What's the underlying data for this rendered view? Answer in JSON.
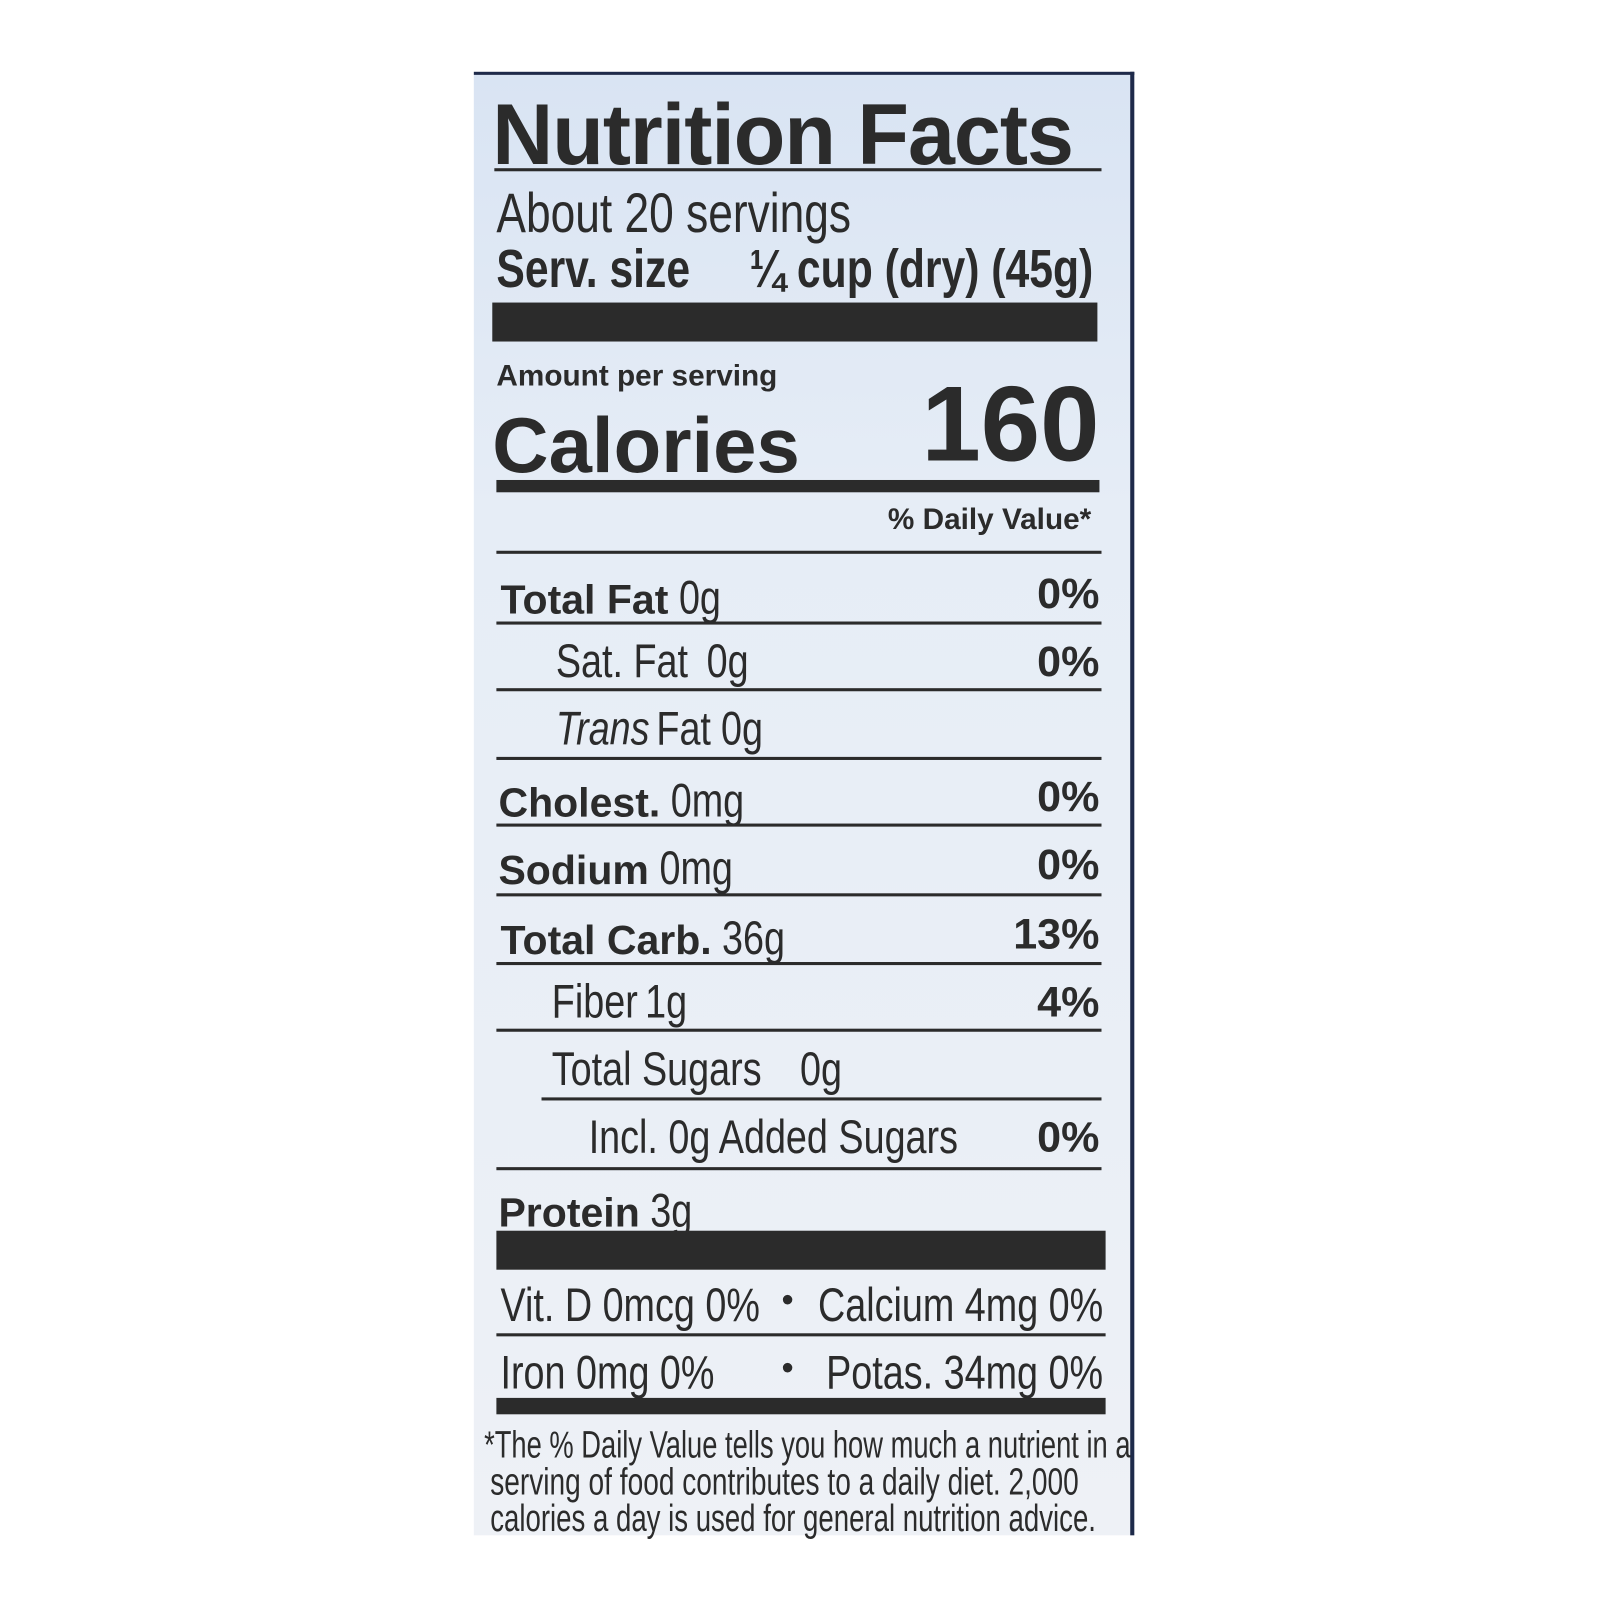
{
  "title": "Nutrition Facts",
  "servings": "About 20 servings",
  "serving_size": {
    "label": "Serv. size",
    "value": "¼ cup (dry) (45g)"
  },
  "amount_per_serving": "Amount per serving",
  "calories": {
    "label": "Calories",
    "value": "160"
  },
  "daily_value_header": "% Daily Value*",
  "nutrients": [
    {
      "name": "Total Fat",
      "amount": "0g",
      "dv": "0%"
    },
    {
      "name": "Sat. Fat",
      "amount": "0g",
      "dv": "0%"
    },
    {
      "name": "Trans",
      "name_suffix": "Fat",
      "amount": "0g",
      "dv": ""
    },
    {
      "name": "Cholest.",
      "amount": "0mg",
      "dv": "0%"
    },
    {
      "name": "Sodium",
      "amount": "0mg",
      "dv": "0%"
    },
    {
      "name": "Total Carb.",
      "amount": "36g",
      "dv": "13%"
    },
    {
      "name": "Fiber",
      "amount": "1g",
      "dv": "4%"
    },
    {
      "name": "Total Sugars",
      "amount": "0g",
      "dv": ""
    },
    {
      "name": "Incl. 0g Added Sugars",
      "amount": "",
      "dv": "0%"
    },
    {
      "name": "Protein",
      "amount": "3g",
      "dv": ""
    }
  ],
  "vitamins": [
    {
      "left": "Vit. D 0mcg 0%",
      "right": "Calcium 4mg 0%"
    },
    {
      "left": "Iron 0mg 0%",
      "right": "Potas. 34mg 0%"
    }
  ],
  "bullet": "•",
  "footnote": [
    "*The % Daily Value tells you how much a nutrient in a",
    "serving of food contributes to a daily diet. 2,000",
    "calories a day is used for general nutrition advice."
  ]
}
